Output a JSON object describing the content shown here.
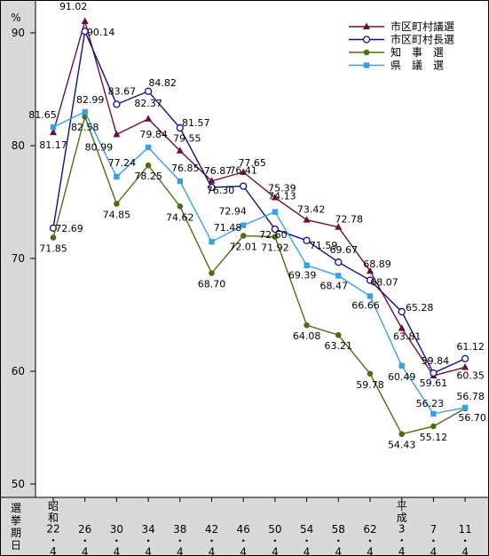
{
  "chart_data": {
    "type": "line",
    "yunit": "%",
    "ylim": [
      50,
      92
    ],
    "yticks": [
      "90",
      "80",
      "70",
      "60",
      "50"
    ],
    "grid": false,
    "legend_position": "top-right",
    "xaxis_title": [
      "選",
      "挙",
      "期",
      "日"
    ],
    "categories": [
      {
        "era": "昭和",
        "year": "22",
        "month": "4"
      },
      {
        "era": "",
        "year": "26",
        "month": "4"
      },
      {
        "era": "",
        "year": "30",
        "month": "4"
      },
      {
        "era": "",
        "year": "34",
        "month": "4"
      },
      {
        "era": "",
        "year": "38",
        "month": "4"
      },
      {
        "era": "",
        "year": "42",
        "month": "4"
      },
      {
        "era": "",
        "year": "46",
        "month": "4"
      },
      {
        "era": "",
        "year": "50",
        "month": "4"
      },
      {
        "era": "",
        "year": "54",
        "month": "4"
      },
      {
        "era": "",
        "year": "58",
        "month": "4"
      },
      {
        "era": "",
        "year": "62",
        "month": "4"
      },
      {
        "era": "平成",
        "year": "3",
        "month": "4"
      },
      {
        "era": "",
        "year": "7",
        "month": "4"
      },
      {
        "era": "",
        "year": "11",
        "month": "4"
      }
    ],
    "series": [
      {
        "name": "市区町村議選",
        "color": "#6b0f3a",
        "marker": "triangle",
        "values": [
          81.17,
          91.02,
          80.99,
          82.37,
          79.55,
          76.87,
          77.65,
          75.39,
          73.42,
          72.78,
          68.89,
          63.81,
          59.61,
          60.35
        ]
      },
      {
        "name": "市区町村長選",
        "color": "#0f0f8a",
        "marker": "circle-open",
        "values": [
          72.69,
          90.14,
          83.67,
          84.82,
          81.57,
          76.3,
          76.41,
          72.6,
          71.59,
          69.67,
          68.07,
          65.28,
          59.84,
          61.12
        ]
      },
      {
        "name": "知　事　選",
        "color": "#4e6d13",
        "marker": "circle-filled",
        "values": [
          71.85,
          82.58,
          74.85,
          78.25,
          74.62,
          68.7,
          72.01,
          71.92,
          64.08,
          63.21,
          59.78,
          54.43,
          55.12,
          56.7
        ]
      },
      {
        "name": "県　議　選",
        "color": "#3aa0e6",
        "marker": "square",
        "values": [
          81.65,
          82.99,
          77.24,
          79.84,
          76.85,
          71.48,
          72.94,
          74.13,
          69.39,
          68.47,
          66.66,
          60.49,
          56.23,
          56.78
        ]
      }
    ]
  }
}
